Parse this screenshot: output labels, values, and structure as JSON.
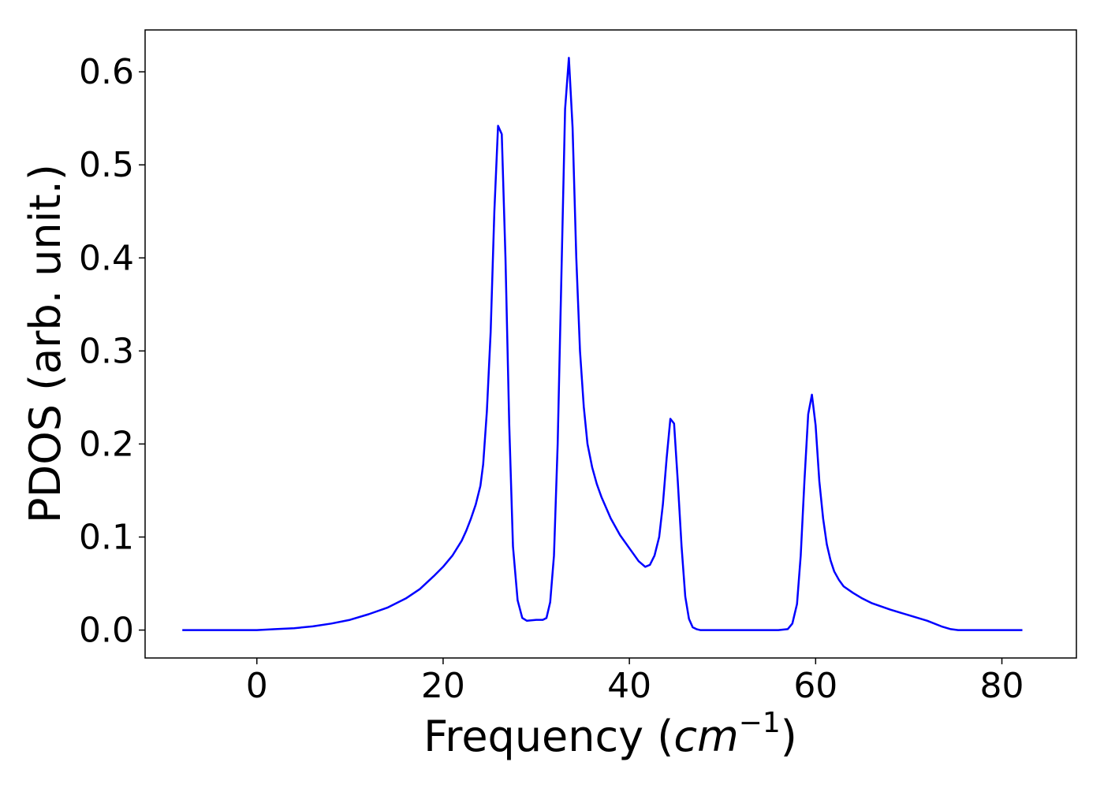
{
  "chart_data": {
    "type": "line",
    "title": "",
    "xlabel_main": "Frequency (",
    "xlabel_unit": "cm",
    "xlabel_exp": "−1",
    "xlabel_close": ")",
    "ylabel": "PDOS (arb. unit.)",
    "xlim": [
      -12,
      88
    ],
    "ylim": [
      -0.03,
      0.645
    ],
    "xticks": [
      0,
      20,
      40,
      60,
      80
    ],
    "xtick_labels": [
      "0",
      "20",
      "40",
      "60",
      "80"
    ],
    "yticks": [
      0.0,
      0.1,
      0.2,
      0.3,
      0.4,
      0.5,
      0.6
    ],
    "ytick_labels": [
      "0.0",
      "0.1",
      "0.2",
      "0.3",
      "0.4",
      "0.5",
      "0.6"
    ],
    "grid": false,
    "legend": "none",
    "series": [
      {
        "color": "#0000ff",
        "x": [
          -8,
          0,
          2,
          4,
          6,
          8,
          10,
          12,
          14,
          16,
          17.5,
          19,
          20,
          21,
          22,
          22.5,
          23,
          23.5,
          24,
          24.3,
          24.7,
          25.1,
          25.5,
          25.9,
          26.3,
          26.7,
          27.1,
          27.5,
          28,
          28.5,
          29,
          30,
          30.7,
          31.1,
          31.5,
          31.9,
          32.3,
          32.7,
          33.1,
          33.5,
          33.9,
          34.3,
          34.7,
          35.1,
          35.5,
          36,
          36.5,
          37,
          38,
          39,
          40,
          41,
          41.7,
          42.2,
          42.7,
          43.2,
          43.6,
          44,
          44.4,
          44.8,
          45.2,
          45.6,
          46,
          46.4,
          46.8,
          47.2,
          47.6,
          48,
          50,
          54,
          56,
          57,
          57.5,
          58,
          58.4,
          58.8,
          59.2,
          59.6,
          60,
          60.4,
          60.8,
          61.2,
          61.6,
          62,
          62.5,
          63,
          64,
          65,
          66,
          68,
          70,
          72,
          73.5,
          74.5,
          75.3,
          76,
          77,
          82.2
        ],
        "y": [
          0.0,
          0.0,
          0.001,
          0.002,
          0.004,
          0.007,
          0.011,
          0.017,
          0.024,
          0.034,
          0.044,
          0.058,
          0.068,
          0.08,
          0.096,
          0.107,
          0.12,
          0.135,
          0.155,
          0.178,
          0.235,
          0.32,
          0.45,
          0.542,
          0.533,
          0.4,
          0.22,
          0.09,
          0.032,
          0.013,
          0.01,
          0.011,
          0.011,
          0.013,
          0.03,
          0.08,
          0.2,
          0.38,
          0.56,
          0.615,
          0.54,
          0.4,
          0.3,
          0.24,
          0.2,
          0.175,
          0.157,
          0.143,
          0.12,
          0.102,
          0.088,
          0.074,
          0.068,
          0.07,
          0.08,
          0.1,
          0.135,
          0.185,
          0.227,
          0.222,
          0.16,
          0.09,
          0.036,
          0.012,
          0.003,
          0.001,
          0.0,
          0.0,
          0.0,
          0.0,
          0.0,
          0.001,
          0.007,
          0.028,
          0.08,
          0.16,
          0.232,
          0.253,
          0.22,
          0.16,
          0.12,
          0.092,
          0.075,
          0.063,
          0.054,
          0.047,
          0.04,
          0.034,
          0.029,
          0.022,
          0.016,
          0.01,
          0.004,
          0.001,
          0.0,
          0.0,
          0.0,
          0.0
        ]
      }
    ]
  }
}
